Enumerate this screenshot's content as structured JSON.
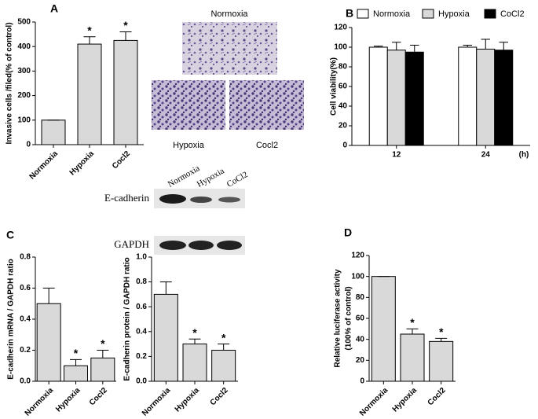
{
  "chart_data": [
    {
      "type": "bar",
      "panel": "A",
      "ylabel": [
        "Invasive cells /filed(% of control)"
      ],
      "categories": [
        "Normoxia",
        "Hypoxia",
        "Cocl2"
      ],
      "values": [
        100,
        410,
        425
      ],
      "errors": [
        0,
        30,
        35
      ],
      "significance": [
        null,
        "*",
        "*"
      ],
      "color": "#d9d9d9",
      "ylim": [
        0,
        500
      ],
      "yticks": [
        0,
        100,
        200,
        300,
        400,
        500
      ]
    },
    {
      "type": "grouped_bar",
      "panel": "B",
      "ylabel": [
        "Cell viability(%)"
      ],
      "xunit": "(h)",
      "categories": [
        "12",
        "24"
      ],
      "series": [
        {
          "name": "Normoxia",
          "color": "#ffffff",
          "values": [
            100,
            100
          ],
          "errors": [
            1,
            2
          ]
        },
        {
          "name": "Hypoxia",
          "color": "#d9d9d9",
          "values": [
            97,
            98
          ],
          "errors": [
            8,
            10
          ]
        },
        {
          "name": "CoCl2",
          "color": "#000000",
          "values": [
            95,
            97
          ],
          "errors": [
            7,
            8
          ]
        }
      ],
      "ylim": [
        0,
        120
      ],
      "yticks": [
        0,
        20,
        40,
        60,
        80,
        100,
        120
      ]
    },
    {
      "type": "bar",
      "panel": "C",
      "ylabel": [
        "E-cadherin mRNA / GAPDH ratio"
      ],
      "categories": [
        "Normoxia",
        "Hypoxia",
        "Cocl2"
      ],
      "values": [
        0.5,
        0.1,
        0.15
      ],
      "errors": [
        0.1,
        0.04,
        0.05
      ],
      "significance": [
        null,
        "*",
        "*"
      ],
      "color": "#d9d9d9",
      "ylim": [
        0,
        0.8
      ],
      "yticks": [
        {
          "value": 0,
          "label": "0.0"
        },
        0.2,
        0.4,
        0.6,
        0.8
      ]
    },
    {
      "type": "bar",
      "ylabel": [
        "E-cadherin protein / GAPDH ratio"
      ],
      "categories": [
        "Normoxia",
        "Hypoxia",
        "Cocl2"
      ],
      "values": [
        0.7,
        0.3,
        0.25
      ],
      "errors": [
        0.1,
        0.04,
        0.05
      ],
      "significance": [
        null,
        "*",
        "*"
      ],
      "color": "#d9d9d9",
      "ylim": [
        0,
        1
      ],
      "yticks": [
        {
          "value": 0,
          "label": "0.0"
        },
        0.2,
        0.4,
        0.6,
        0.8,
        {
          "value": 1,
          "label": "1.0"
        }
      ]
    },
    {
      "type": "bar",
      "panel": "D",
      "ylabel": [
        "Relative luciferase activity",
        "(100% of control)"
      ],
      "categories": [
        "Normoxia",
        "Hypoxia",
        "Cocl2"
      ],
      "values": [
        100,
        45,
        38
      ],
      "errors": [
        0,
        5,
        3
      ],
      "significance": [
        null,
        "*",
        "*"
      ],
      "color": "#d9d9d9",
      "ylim": [
        0,
        120
      ],
      "yticks": [
        0,
        20,
        40,
        60,
        80,
        100,
        120
      ]
    }
  ],
  "micrographs": [
    {
      "label": "Normoxia"
    },
    {
      "label": "Hypoxia"
    },
    {
      "label": "Cocl2"
    }
  ],
  "blot": {
    "rows": [
      "E-cadherin",
      "GAPDH"
    ],
    "lanes": [
      "Normoxia",
      "Hypoxia",
      "CoCl2"
    ]
  }
}
